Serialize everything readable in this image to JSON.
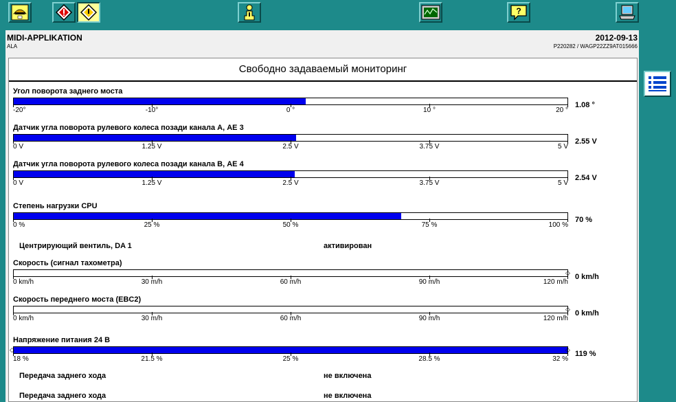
{
  "header": {
    "title": "MIDI-APPLIKATION",
    "subtitle": "ALA",
    "date": "2012-09-13",
    "id": "P220282 / WAGP22ZZ9AT015666"
  },
  "toolbar": {
    "icons": [
      "man-logo-icon",
      "diagnostic-warning-icon",
      "diagnostic-active-icon",
      "info-person-icon",
      "monitor-graph-icon",
      "help-icon",
      "computer-icon"
    ],
    "active": "diagnostic-active-icon"
  },
  "main": {
    "heading": "Свободно задаваемый мониторинг",
    "gauges": [
      {
        "label": "Угол поворота заднего моста",
        "value": "1.08 °",
        "fraction": 0.527,
        "ticks": [
          "-20°",
          "-10°",
          "0 °",
          "10 °",
          "20 °"
        ]
      },
      {
        "label": "Датчик угла поворота рулевого колеса позади канала А, АЕ 3",
        "value": "2.55 V",
        "fraction": 0.51,
        "ticks": [
          "0 V",
          "1.25 V",
          "2.5 V",
          "3.75 V",
          "5 V"
        ]
      },
      {
        "label": "Датчик угла поворота рулевого колеса позади канала В, АЕ 4",
        "value": "2.54 V",
        "fraction": 0.508,
        "ticks": [
          "0 V",
          "1.25 V",
          "2.5 V",
          "3.75 V",
          "5 V"
        ]
      },
      {
        "label": "Степень нагрузки CPU",
        "value": "70 %",
        "fraction": 0.7,
        "ticks": [
          "0 %",
          "25 %",
          "50 %",
          "75 %",
          "100 %"
        ]
      }
    ],
    "status1": {
      "label": "Центрирующий вентиль, DA 1",
      "value": "активирован"
    },
    "gauges2": [
      {
        "label": "Скорость (сигнал тахометра)",
        "value": "0 km/h",
        "fraction": 0,
        "ticks": [
          "0 km/h",
          "30 m/h",
          "60 m/h",
          "90 m/h",
          "120 m/h"
        ]
      },
      {
        "label": "Скорость переднего моста (EBC2)",
        "value": "0 km/h",
        "fraction": 0,
        "ticks": [
          "0 km/h",
          "30 m/h",
          "60 m/h",
          "90 m/h",
          "120 m/h"
        ]
      },
      {
        "label": "Напряжение питания 24 В",
        "value": "119 %",
        "fraction": 1.0,
        "ticks": [
          "18 %",
          "21.5 %",
          "25 %",
          "28.5 %",
          "32 %"
        ]
      }
    ],
    "status2": {
      "label": "Передача заднего хода",
      "value": "не включена"
    },
    "status3": {
      "label": "Передача заднего хода",
      "value": "не включена"
    }
  },
  "sidebar": {
    "icon": "list-icon"
  }
}
